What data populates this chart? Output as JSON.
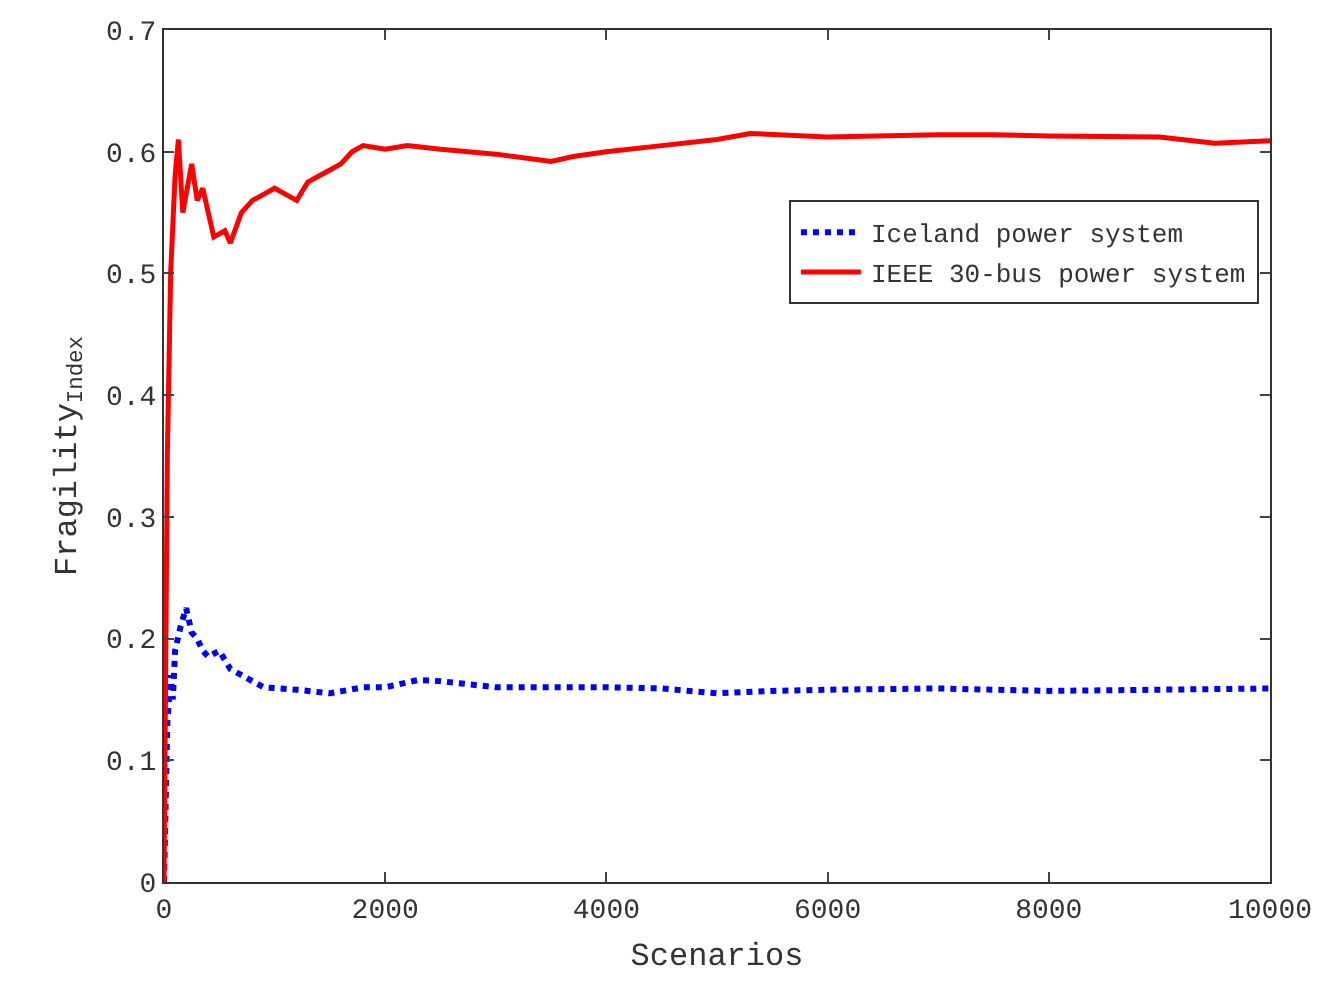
{
  "chart_data": {
    "type": "line",
    "xlabel": "Scenarios",
    "ylabel": "Fragility$_{Index}$",
    "xlim": [
      0,
      10000
    ],
    "xticks": [
      0,
      2000,
      4000,
      6000,
      8000,
      10000
    ],
    "ylim": [
      0,
      0.7
    ],
    "yticks": [
      0,
      0.1,
      0.2,
      0.3,
      0.4,
      0.5,
      0.6,
      0.7
    ],
    "grid": false,
    "legend": "top right",
    "marker": "none",
    "series": [
      {
        "name": "Iceland power system",
        "color": "#0000ff",
        "line_style": "dotted",
        "x": [
          0,
          30,
          60,
          80,
          100,
          150,
          200,
          250,
          300,
          350,
          400,
          500,
          600,
          700,
          800,
          900,
          1200,
          1500,
          1800,
          2000,
          2300,
          2500,
          3000,
          3500,
          4000,
          4500,
          5000,
          5500,
          6000,
          7000,
          8000,
          9000,
          10000
        ],
        "values": [
          0,
          0.13,
          0.17,
          0.15,
          0.19,
          0.21,
          0.225,
          0.205,
          0.2,
          0.19,
          0.185,
          0.19,
          0.175,
          0.17,
          0.165,
          0.16,
          0.158,
          0.155,
          0.16,
          0.16,
          0.166,
          0.165,
          0.16,
          0.16,
          0.16,
          0.159,
          0.155,
          0.157,
          0.158,
          0.159,
          0.157,
          0.158,
          0.159
        ]
      },
      {
        "name": "IEEE 30-bus power system",
        "color": "#ff0000",
        "line_style": "solid",
        "x": [
          0,
          30,
          60,
          100,
          130,
          170,
          250,
          300,
          350,
          450,
          550,
          600,
          700,
          800,
          900,
          1000,
          1100,
          1200,
          1300,
          1400,
          1500,
          1600,
          1700,
          1800,
          2000,
          2200,
          2500,
          3000,
          3500,
          3700,
          4000,
          4500,
          5000,
          5300,
          6000,
          7000,
          7500,
          8000,
          9000,
          9500,
          10000
        ],
        "values": [
          0,
          0.35,
          0.5,
          0.58,
          0.61,
          0.55,
          0.59,
          0.56,
          0.57,
          0.53,
          0.535,
          0.525,
          0.55,
          0.56,
          0.565,
          0.57,
          0.565,
          0.56,
          0.575,
          0.58,
          0.585,
          0.59,
          0.6,
          0.605,
          0.602,
          0.605,
          0.602,
          0.598,
          0.592,
          0.596,
          0.6,
          0.605,
          0.61,
          0.615,
          0.612,
          0.614,
          0.614,
          0.613,
          0.612,
          0.607,
          0.609
        ]
      }
    ]
  }
}
